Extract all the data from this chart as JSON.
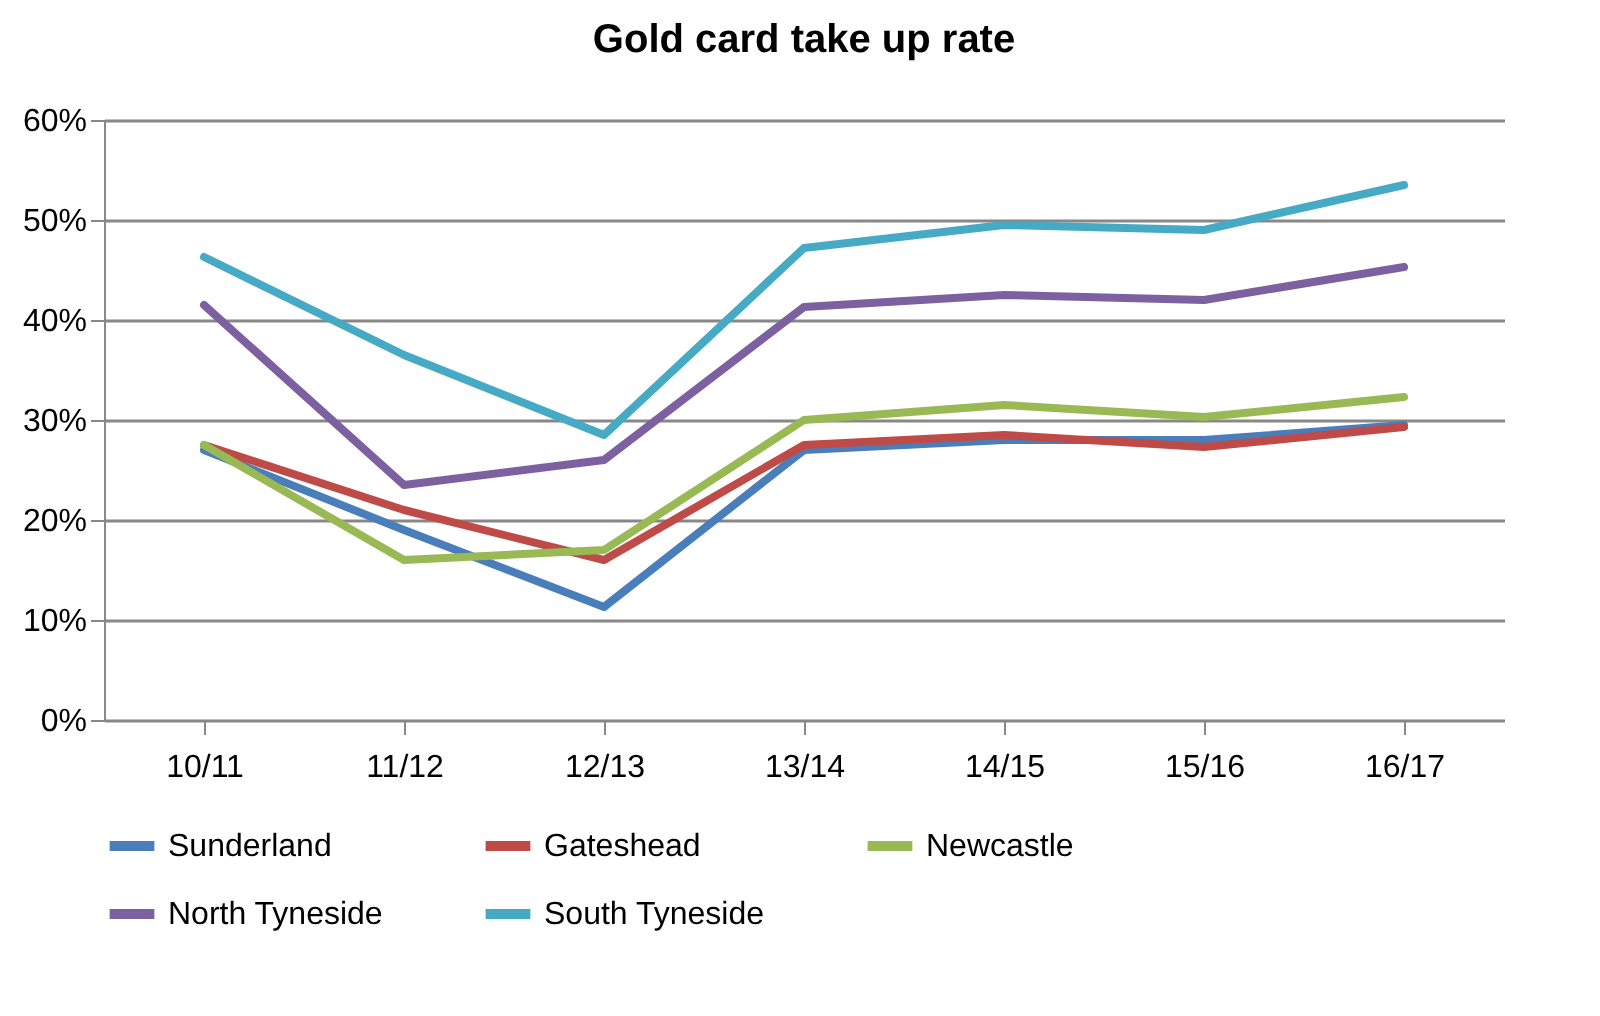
{
  "chart_data": {
    "type": "line",
    "title": "Gold card take up rate",
    "categories": [
      "10/11",
      "11/12",
      "12/13",
      "13/14",
      "14/15",
      "15/16",
      "16/17"
    ],
    "series": [
      {
        "name": "Sunderland",
        "color": "#4a7ebb",
        "values": [
          27,
          19,
          11.3,
          27,
          28,
          28,
          29.5
        ]
      },
      {
        "name": "Gateshead",
        "color": "#be4b48",
        "values": [
          27.5,
          21,
          16,
          27.5,
          28.5,
          27.3,
          29.3
        ]
      },
      {
        "name": "Newcastle",
        "color": "#98b954",
        "values": [
          27.5,
          16,
          17,
          30,
          31.5,
          30.3,
          32.3
        ]
      },
      {
        "name": "North Tyneside",
        "color": "#7d60a0",
        "values": [
          41.5,
          23.5,
          26,
          41.3,
          42.5,
          42,
          45.3
        ]
      },
      {
        "name": "South Tyneside",
        "color": "#46aac5",
        "values": [
          46.3,
          36.5,
          28.5,
          47.2,
          49.5,
          49,
          53.5
        ]
      }
    ],
    "ylim": [
      0,
      60
    ],
    "yticks": [
      {
        "value": 0,
        "label": "0%"
      },
      {
        "value": 10,
        "label": "10%"
      },
      {
        "value": 20,
        "label": "20%"
      },
      {
        "value": 30,
        "label": "30%"
      },
      {
        "value": 40,
        "label": "40%"
      },
      {
        "value": 50,
        "label": "50%"
      },
      {
        "value": 60,
        "label": "60%"
      }
    ],
    "grid": "y",
    "legend": "bottom",
    "marker": "none",
    "line_style": "solid"
  }
}
